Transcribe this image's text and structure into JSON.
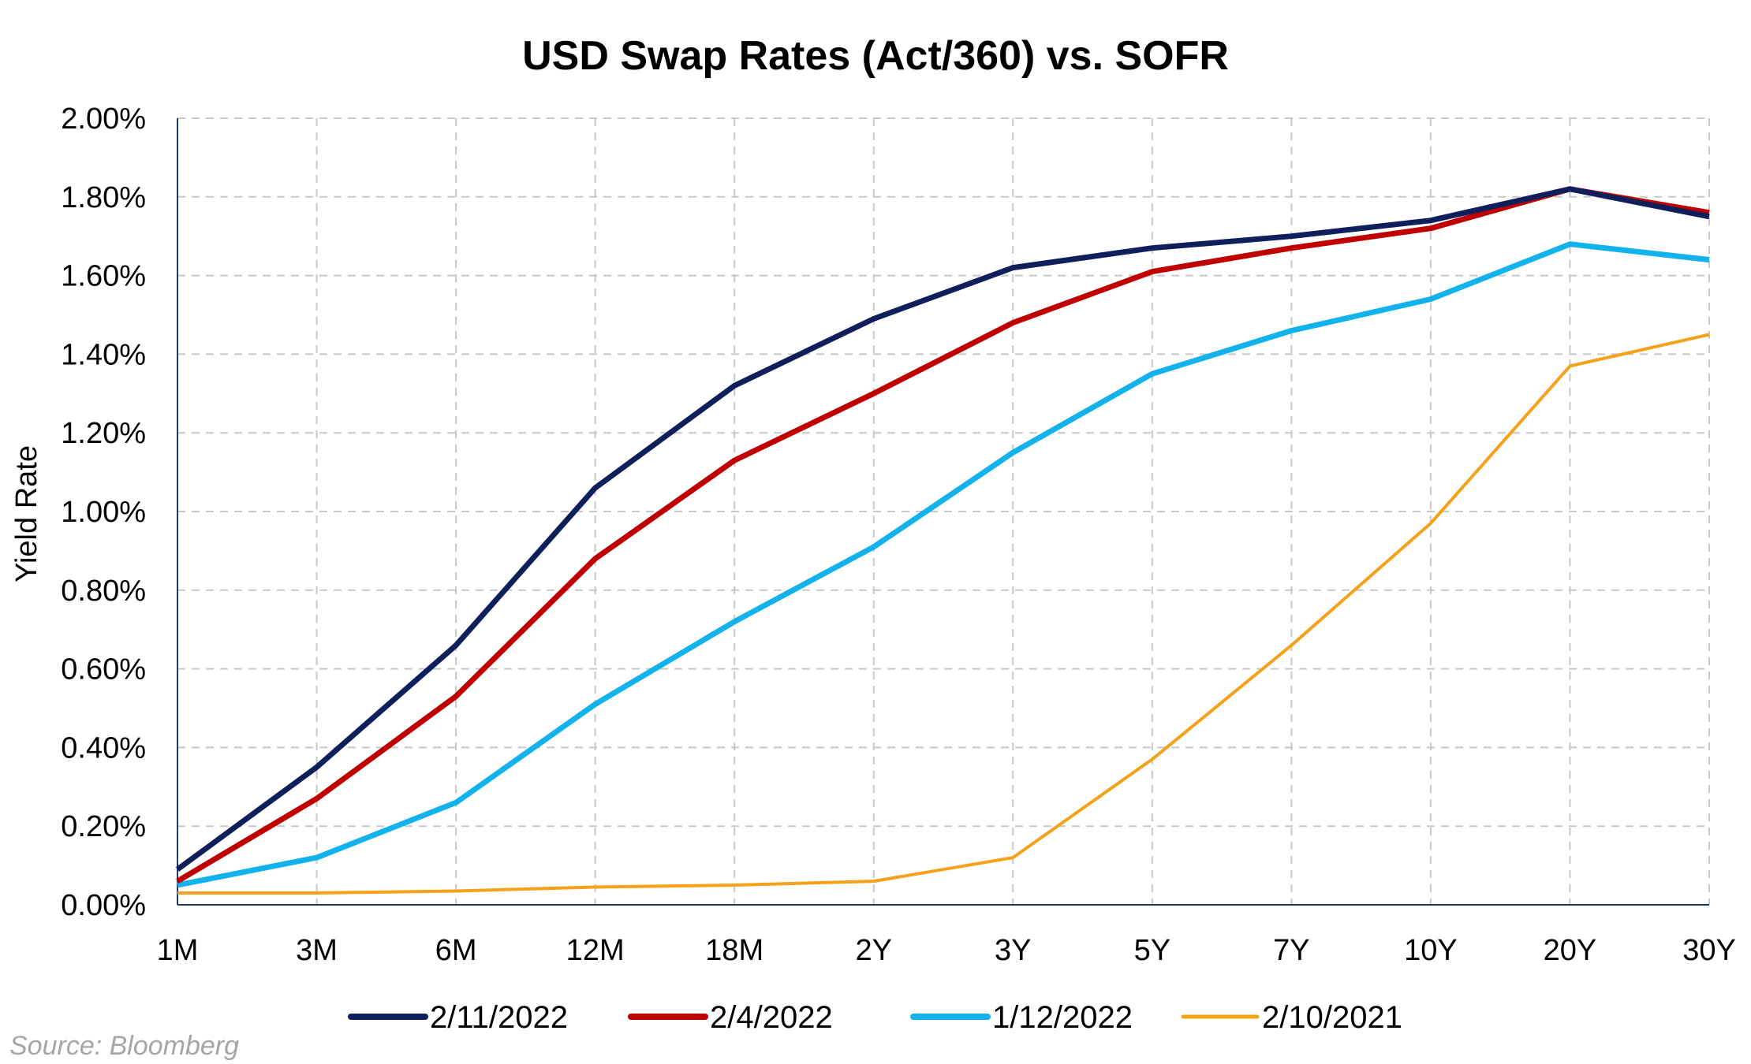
{
  "chart_data": {
    "type": "line",
    "title": "USD Swap Rates (Act/360) vs. SOFR",
    "xlabel": "",
    "ylabel": "Yield Rate",
    "categories": [
      "1M",
      "3M",
      "6M",
      "12M",
      "18M",
      "2Y",
      "3Y",
      "5Y",
      "7Y",
      "10Y",
      "20Y",
      "30Y"
    ],
    "ylim": [
      0,
      2.0
    ],
    "yticks": [
      "0.00%",
      "0.20%",
      "0.40%",
      "0.60%",
      "0.80%",
      "1.00%",
      "1.20%",
      "1.40%",
      "1.60%",
      "1.80%",
      "2.00%"
    ],
    "grid": true,
    "legend_position": "bottom",
    "series": [
      {
        "name": "2/11/2022",
        "color": "#0f1f5c",
        "width": 7,
        "values": [
          0.09,
          0.35,
          0.66,
          1.06,
          1.32,
          1.49,
          1.62,
          1.67,
          1.7,
          1.74,
          1.82,
          1.75
        ]
      },
      {
        "name": "2/4/2022",
        "color": "#c00000",
        "width": 7,
        "values": [
          0.06,
          0.27,
          0.53,
          0.88,
          1.13,
          1.3,
          1.48,
          1.61,
          1.67,
          1.72,
          1.82,
          1.76
        ]
      },
      {
        "name": "1/12/2022",
        "color": "#12b2ec",
        "width": 7,
        "values": [
          0.05,
          0.12,
          0.26,
          0.51,
          0.72,
          0.91,
          1.15,
          1.35,
          1.46,
          1.54,
          1.68,
          1.64
        ]
      },
      {
        "name": "2/10/2021",
        "color": "#f5a11a",
        "width": 4,
        "values": [
          0.03,
          0.03,
          0.035,
          0.045,
          0.05,
          0.06,
          0.12,
          0.37,
          0.66,
          0.97,
          1.37,
          1.45
        ]
      }
    ],
    "source": "Source: Bloomberg"
  }
}
